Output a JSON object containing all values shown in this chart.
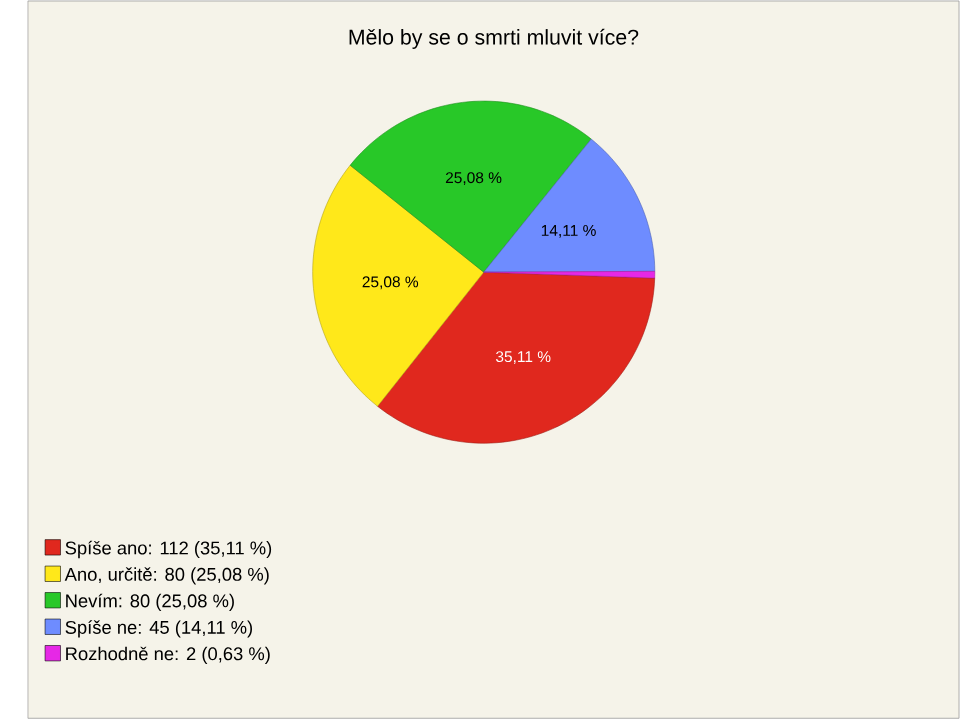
{
  "chart_data": {
    "type": "pie",
    "title": "Mělo by se o smrti mluvit více?",
    "categories": [
      "Spíše ano: 112 (35,11 %)",
      "Ano, určitě: 80 (25,08 %)",
      "Nevím: 80 (25,08 %)",
      "Spíše ne: 45 (14,11 %)",
      "Rozhodně ne: 2 (0,63 %)"
    ],
    "values": [
      35.11,
      25.08,
      25.08,
      14.11,
      0.63
    ],
    "colors": [
      "#e0281e",
      "#ffe81a",
      "#28c828",
      "#6e8cff",
      "#e628e6"
    ],
    "value_labels": [
      "35,11 %",
      "25,08 %",
      "25,08 %",
      "14,11 %",
      null
    ],
    "legend": "bottom left"
  }
}
